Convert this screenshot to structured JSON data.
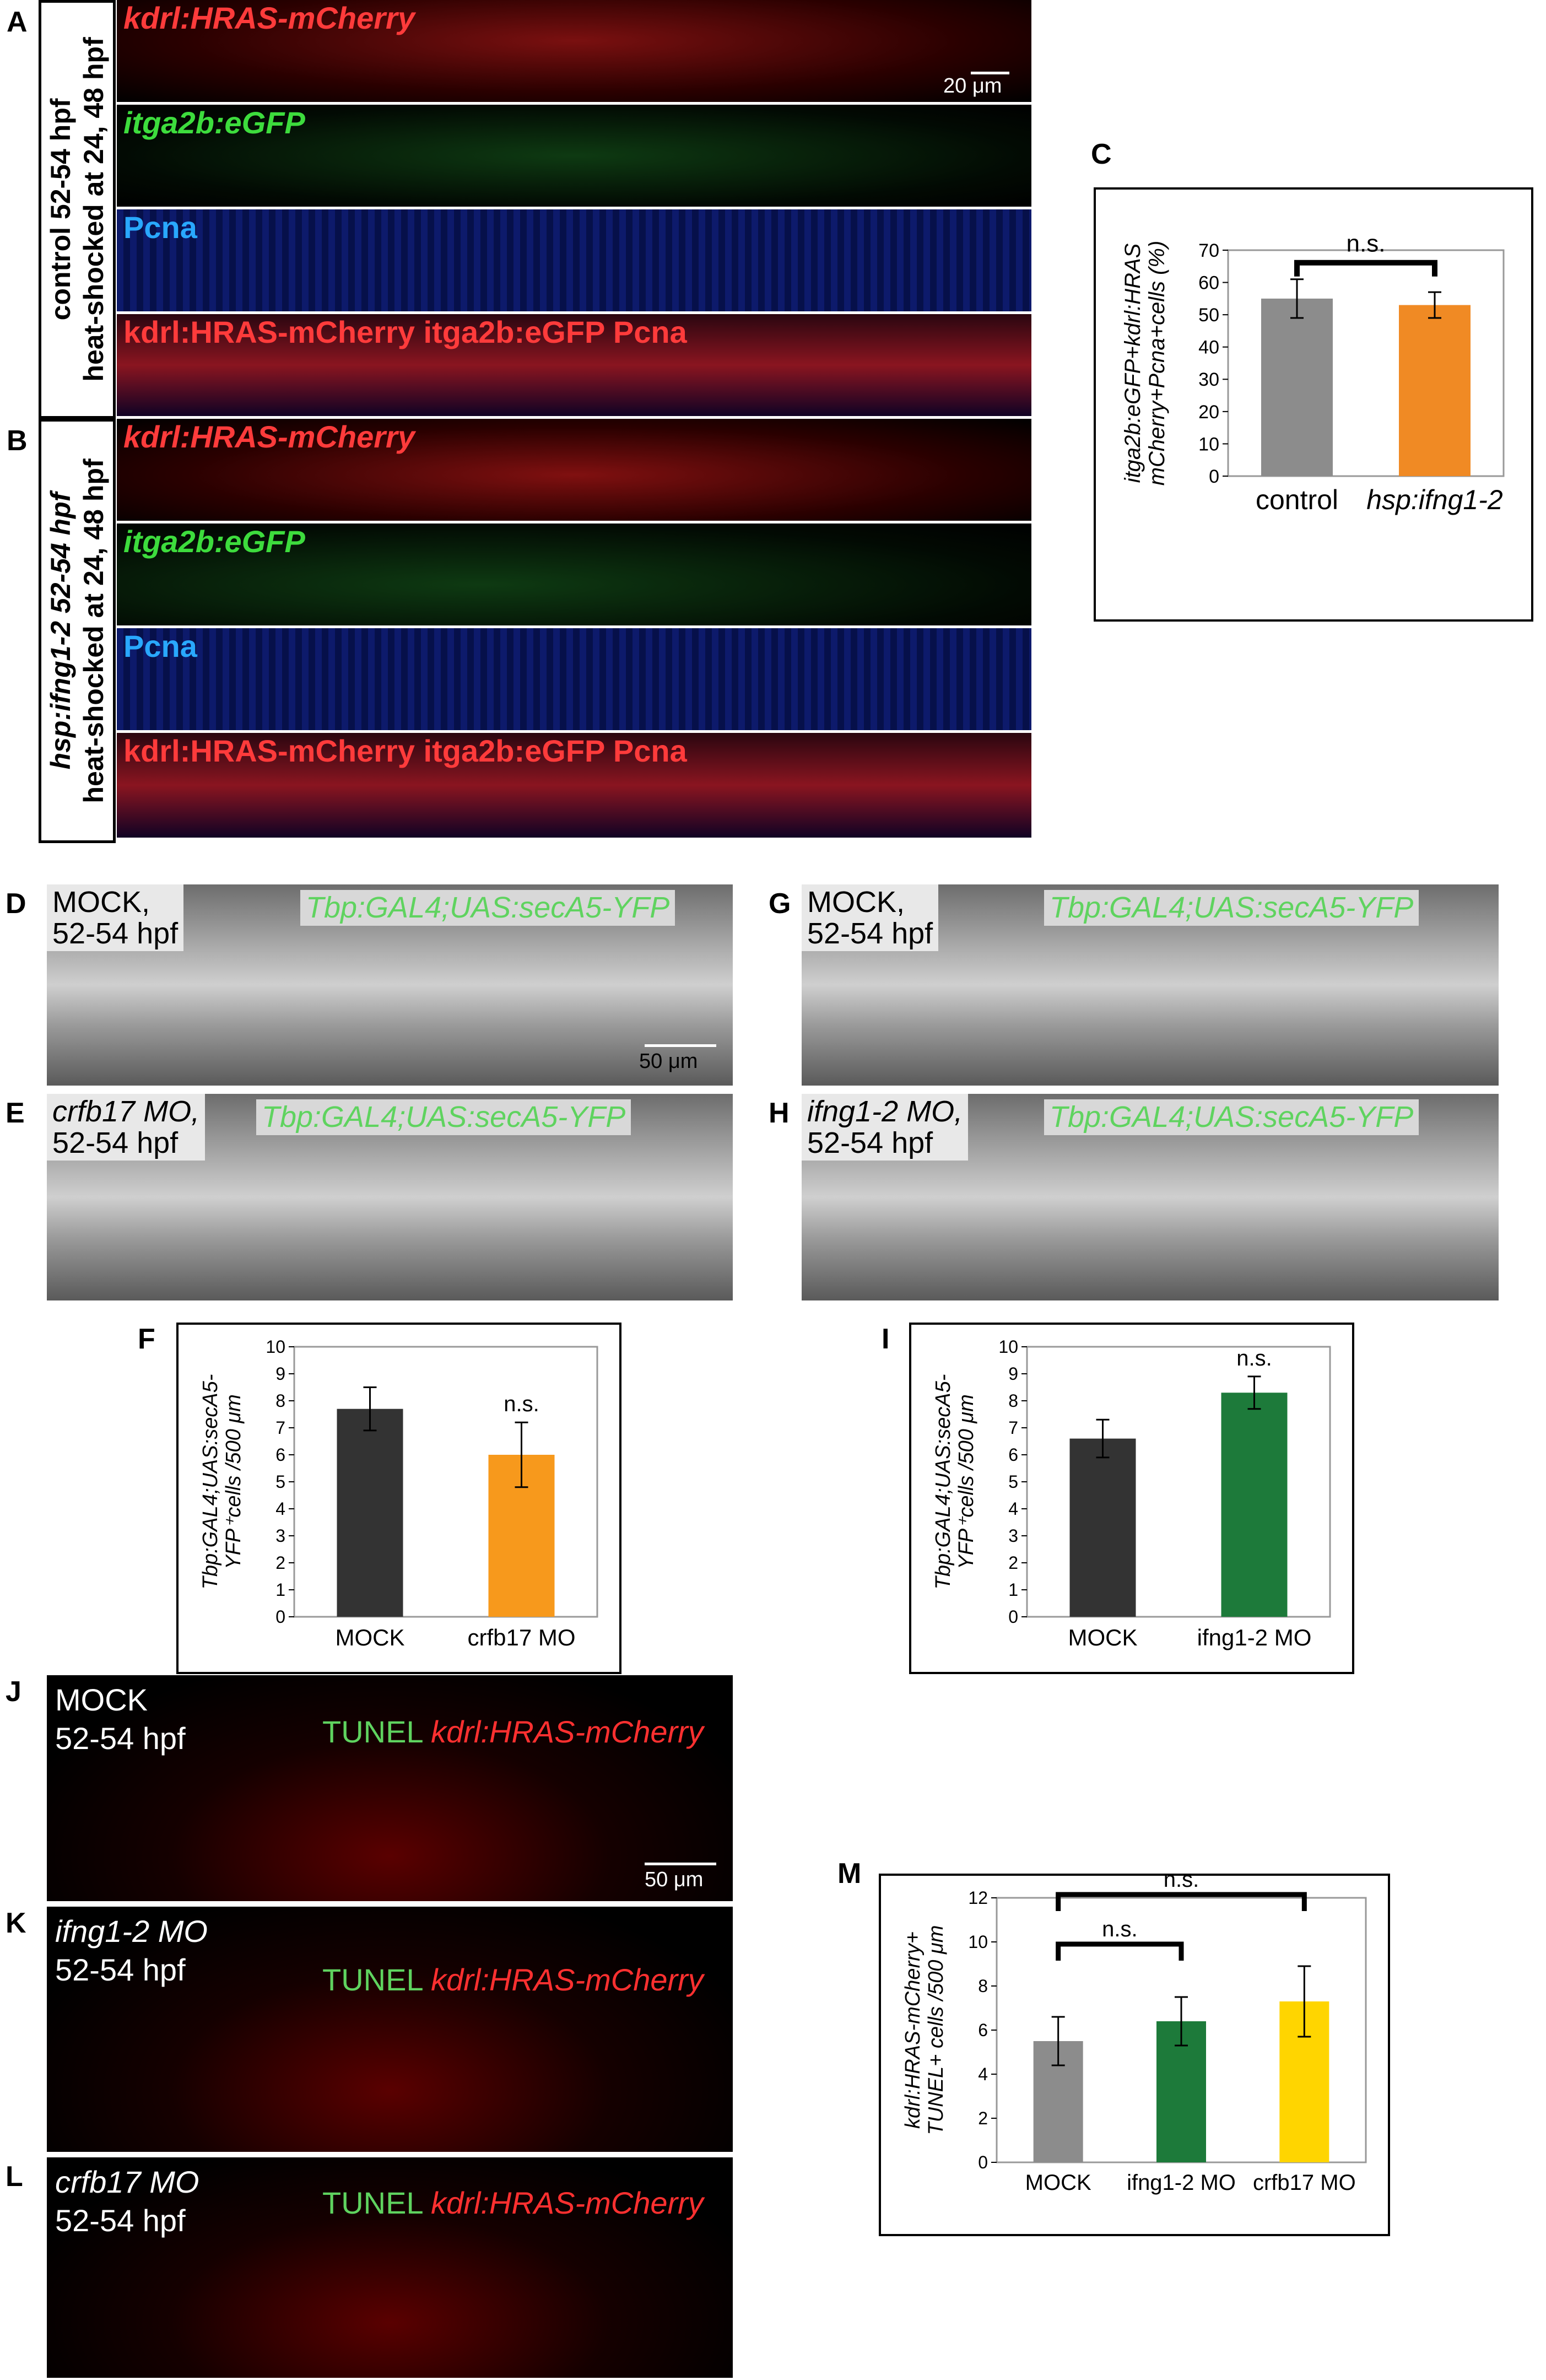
{
  "panels": {
    "A": {
      "letter": "A",
      "side_label_line1": "control  52-54 hpf",
      "side_label_line2": "heat-shocked at 24, 48 hpf",
      "rows": [
        {
          "label": "kdrl:HRAS-mCherry",
          "color": "#ff3b3b"
        },
        {
          "label": "itga2b:eGFP",
          "color": "#3ddc3d"
        },
        {
          "label": "Pcna",
          "color": "#29a8ff"
        },
        {
          "label": "kdrl:HRAS-mCherry itga2b:eGFP Pcna",
          "color": "#ff3b3b"
        }
      ],
      "scale": "20 μm"
    },
    "B": {
      "letter": "B",
      "side_label_line1": "hsp:ifng1-2 52-54 hpf",
      "side_label_line2": "heat-shocked at 24, 48 hpf",
      "rows": [
        {
          "label": "kdrl:HRAS-mCherry",
          "color": "#ff3b3b"
        },
        {
          "label": "itga2b:eGFP",
          "color": "#3ddc3d"
        },
        {
          "label": "Pcna",
          "color": "#29a8ff"
        },
        {
          "label": "kdrl:HRAS-mCherry itga2b:eGFP Pcna",
          "color": "#ff3b3b"
        }
      ]
    },
    "D": {
      "letter": "D",
      "cond": "MOCK,",
      "stage": "52-54 hpf",
      "reporter": "Tbp:GAL4;UAS:secA5-YFP",
      "scale": "50 μm"
    },
    "E": {
      "letter": "E",
      "cond": "crfb17 MO,",
      "stage": "52-54 hpf",
      "reporter": "Tbp:GAL4;UAS:secA5-YFP"
    },
    "G": {
      "letter": "G",
      "cond": "MOCK,",
      "stage": "52-54 hpf",
      "reporter": "Tbp:GAL4;UAS:secA5-YFP"
    },
    "H": {
      "letter": "H",
      "cond": "ifng1-2 MO,",
      "stage": "52-54 hpf",
      "reporter": "Tbp:GAL4;UAS:secA5-YFP"
    },
    "J": {
      "letter": "J",
      "cond": "MOCK",
      "stage": "52-54 hpf",
      "stain1": "TUNEL",
      "stain2": "kdrl:HRAS-mCherry",
      "scale": "50 μm"
    },
    "K": {
      "letter": "K",
      "cond": "ifng1-2 MO",
      "stage": "52-54 hpf",
      "stain1": "TUNEL",
      "stain2": "kdrl:HRAS-mCherry"
    },
    "L": {
      "letter": "L",
      "cond": "crfb17 MO",
      "stage": "52-54 hpf",
      "stain1": "TUNEL",
      "stain2": "kdrl:HRAS-mCherry"
    }
  },
  "chart_data": [
    {
      "id": "C",
      "type": "bar",
      "panel_letter": "C",
      "ylabel_line1": "itga2b:eGFP+kdrl:HRAS",
      "ylabel_line2": "mCherry+Pcna+cells (%)",
      "categories": [
        "control",
        "hsp:ifng1-2"
      ],
      "values": [
        55,
        53
      ],
      "errors": [
        6,
        4
      ],
      "colors": [
        "#8c8c8c",
        "#f08a24"
      ],
      "ylim": [
        0,
        70
      ],
      "yticks": [
        0,
        10,
        20,
        30,
        40,
        50,
        60,
        70
      ],
      "sig": [
        "n.s."
      ]
    },
    {
      "id": "F",
      "type": "bar",
      "panel_letter": "F",
      "ylabel_line1": "Tbp:GAL4;UAS:secA5-",
      "ylabel_line2": "YFP⁺cells /500 μm",
      "categories": [
        "MOCK",
        "crfb17 MO"
      ],
      "values": [
        7.7,
        6.0
      ],
      "errors": [
        0.8,
        1.2
      ],
      "colors": [
        "#333333",
        "#f7991c"
      ],
      "ylim": [
        0,
        10
      ],
      "yticks": [
        0,
        1,
        2,
        3,
        4,
        5,
        6,
        7,
        8,
        9,
        10
      ],
      "sig": [
        "n.s."
      ]
    },
    {
      "id": "I",
      "type": "bar",
      "panel_letter": "I",
      "ylabel_line1": "Tbp:GAL4;UAS:secA5-",
      "ylabel_line2": "YFP⁺cells /500 μm",
      "categories": [
        "MOCK",
        "ifng1-2 MO"
      ],
      "values": [
        6.6,
        8.3
      ],
      "errors": [
        0.7,
        0.6
      ],
      "colors": [
        "#333333",
        "#1d7a3a"
      ],
      "ylim": [
        0,
        10
      ],
      "yticks": [
        0,
        1,
        2,
        3,
        4,
        5,
        6,
        7,
        8,
        9,
        10
      ],
      "sig": [
        "n.s."
      ]
    },
    {
      "id": "M",
      "type": "bar",
      "panel_letter": "M",
      "ylabel_line1": "kdrl:HRAS-mCherry+",
      "ylabel_line2": "TUNEL+ cells /500 μm",
      "categories": [
        "MOCK",
        "ifng1-2 MO",
        "crfb17 MO"
      ],
      "values": [
        5.5,
        6.4,
        7.3
      ],
      "errors": [
        1.1,
        1.1,
        1.6
      ],
      "colors": [
        "#8c8c8c",
        "#1d7a3a",
        "#ffd500"
      ],
      "ylim": [
        0,
        12
      ],
      "yticks": [
        0,
        2,
        4,
        6,
        8,
        10,
        12
      ],
      "sig": [
        "n.s.",
        "n.s."
      ]
    }
  ]
}
